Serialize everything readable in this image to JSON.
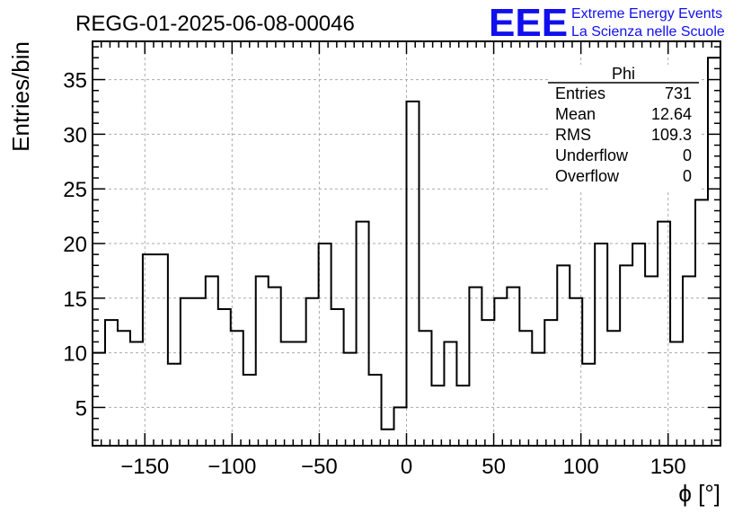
{
  "chart_data": {
    "type": "bar",
    "title": "REGG-01-2025-06-08-00046",
    "xlabel": "ϕ [°]",
    "ylabel": "Entries/bin",
    "xlim": [
      -180,
      180
    ],
    "ylim": [
      1.5,
      38.5
    ],
    "bin_width": 7.2,
    "x_ticks": [
      -150,
      -100,
      -50,
      0,
      50,
      100,
      150
    ],
    "x_tick_labels": [
      "−150",
      "−100",
      "−50",
      "0",
      "50",
      "100",
      "150"
    ],
    "y_ticks": [
      5,
      10,
      15,
      20,
      25,
      30,
      35
    ],
    "y_tick_labels": [
      "5",
      "10",
      "15",
      "20",
      "25",
      "30",
      "35"
    ],
    "grid": true,
    "values": [
      10,
      13,
      12,
      11,
      19,
      19,
      9,
      15,
      15,
      17,
      14,
      12,
      8,
      17,
      16,
      11,
      11,
      15,
      20,
      14,
      10,
      22,
      8,
      3,
      5,
      33,
      12,
      7,
      11,
      7,
      16,
      13,
      15,
      16,
      12,
      10,
      13,
      18,
      15,
      9,
      20,
      12,
      18,
      20,
      17,
      22,
      11,
      17,
      24,
      37
    ]
  },
  "stats_box": {
    "title": "Phi",
    "rows": [
      {
        "label": "Entries",
        "value": "731"
      },
      {
        "label": "Mean",
        "value": "12.64"
      },
      {
        "label": "RMS",
        "value": "109.3"
      },
      {
        "label": "Underflow",
        "value": "0"
      },
      {
        "label": "Overflow",
        "value": "0"
      }
    ]
  },
  "logo": {
    "mark": "EEE",
    "line1": "Extreme Energy Events",
    "line2": "La Scienza nelle Scuole",
    "color": "#1010ee"
  }
}
